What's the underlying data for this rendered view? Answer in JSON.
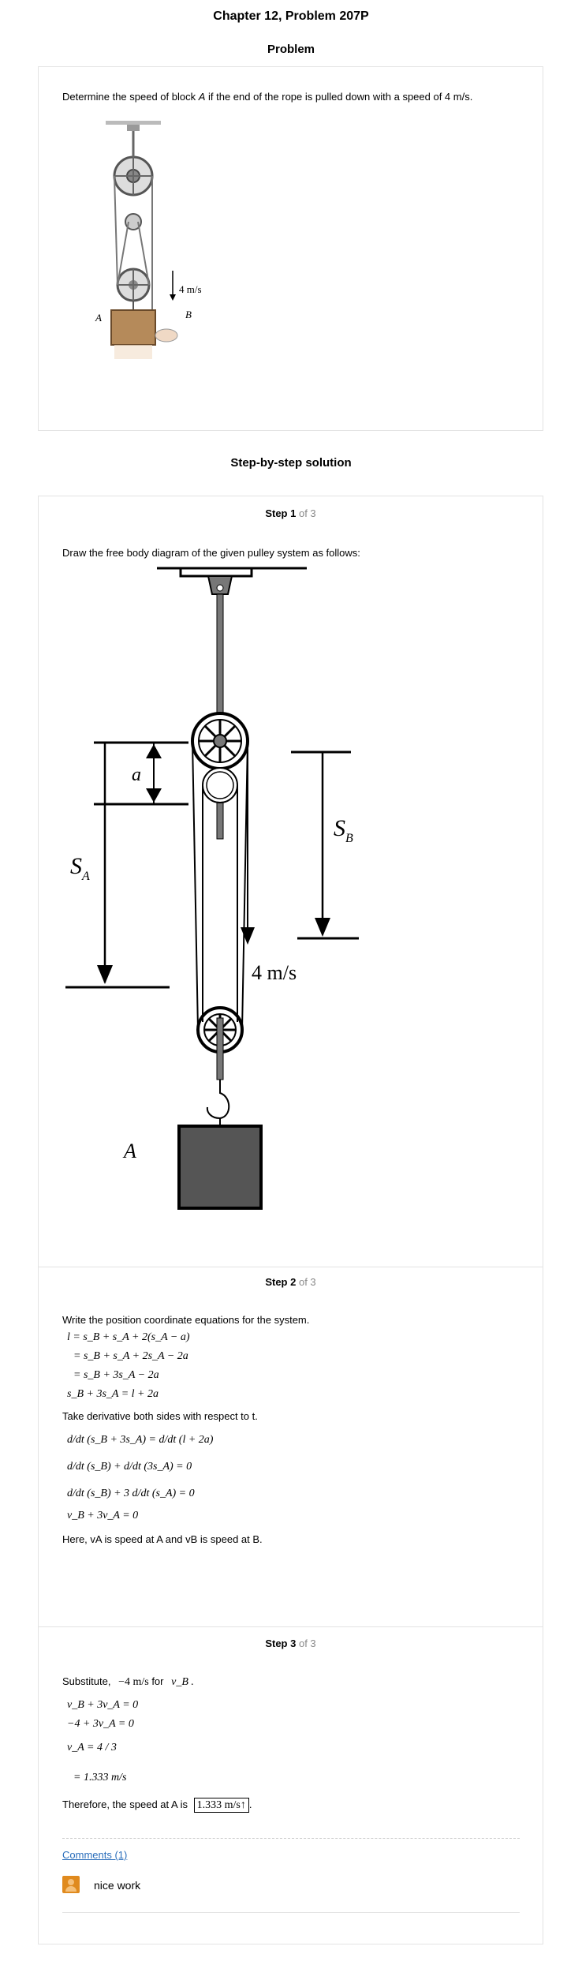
{
  "header": {
    "title": "Chapter 12, Problem 207P",
    "problem_heading": "Problem",
    "solution_heading": "Step-by-step solution"
  },
  "problem": {
    "text_before": "Determine the speed of block ",
    "text_var": "A",
    "text_after": " if the end of the rope is pulled down with a speed of 4 m/s.",
    "figure": {
      "speed_label": "4 m/s",
      "label_b": "B",
      "label_a": "A"
    }
  },
  "steps": [
    {
      "label": "Step 1",
      "of": "of 3",
      "text": "Draw the free body diagram of the given pulley system as follows:",
      "figure": {
        "a": "a",
        "sa": "S",
        "sa_sub": "A",
        "sb": "S",
        "sb_sub": "B",
        "speed": "4 m/s",
        "block": "A"
      }
    },
    {
      "label": "Step 2",
      "of": "of 3",
      "intro": "Write the position coordinate equations for the system.",
      "eq1": [
        "l = s_B + s_A + 2(s_A − a)",
        "= s_B + s_A + 2s_A − 2a",
        "= s_B + 3s_A − 2a",
        "s_B + 3s_A = l + 2a"
      ],
      "deriv_text": "Take derivative both sides with respect to t.",
      "eq2": [
        "d/dt (s_B + 3s_A) = d/dt (l + 2a)",
        "d/dt (s_B) + d/dt (3s_A) = 0",
        "d/dt (s_B) + 3 d/dt (s_A) = 0",
        "v_B + 3v_A = 0"
      ],
      "note": "Here, vA is speed at A and vB is speed at B."
    },
    {
      "label": "Step 3",
      "of": "of 3",
      "subst_pre": "Substitute,",
      "subst_val": "−4 m/s",
      "subst_for": "for",
      "subst_var": "v_B .",
      "eq3": [
        "v_B + 3v_A = 0",
        "−4 + 3v_A = 0",
        "v_A = 4 / 3",
        "= 1.333 m/s"
      ],
      "conclusion_pre": "Therefore, the speed at A is",
      "answer": "1.333 m/s↑"
    }
  ],
  "comments": {
    "link": "Comments (1)",
    "items": [
      {
        "text": "nice work"
      }
    ]
  }
}
